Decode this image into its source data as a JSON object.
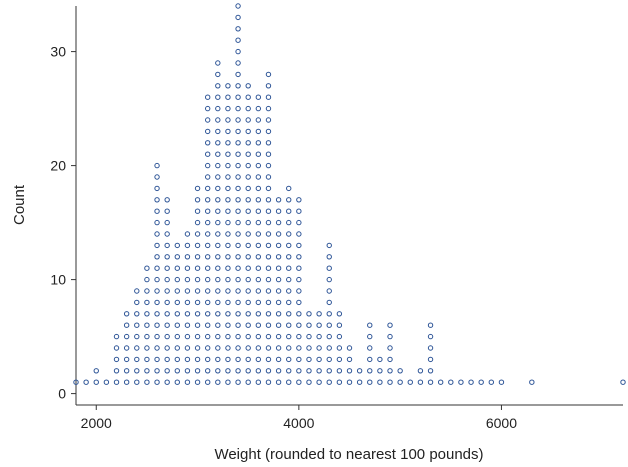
{
  "chart_data": {
    "type": "scatter",
    "subtype": "dot-plot",
    "title": "",
    "xlabel": "Weight (rounded to nearest 100 pounds)",
    "ylabel": "Count",
    "xlim": [
      1800,
      7200
    ],
    "ylim": [
      -1,
      34
    ],
    "xticks": [
      2000,
      4000,
      6000
    ],
    "yticks": [
      0,
      10,
      20,
      30
    ],
    "grid": false,
    "legend": "none",
    "marker_color": "#2e5597",
    "x": [
      1800,
      1900,
      2000,
      2100,
      2200,
      2300,
      2400,
      2500,
      2600,
      2700,
      2800,
      2900,
      3000,
      3100,
      3200,
      3300,
      3400,
      3500,
      3600,
      3700,
      3800,
      3900,
      4000,
      4100,
      4200,
      4300,
      4400,
      4500,
      4600,
      4700,
      4800,
      4900,
      5000,
      5100,
      5200,
      5300,
      5400,
      5500,
      5600,
      5700,
      5800,
      5900,
      6000,
      6300,
      7200
    ],
    "counts": [
      1,
      1,
      2,
      1,
      5,
      7,
      9,
      11,
      20,
      17,
      13,
      14,
      18,
      26,
      29,
      27,
      34,
      27,
      26,
      28,
      17,
      18,
      17,
      7,
      7,
      13,
      7,
      4,
      2,
      6,
      3,
      6,
      2,
      1,
      2,
      6,
      1,
      1,
      1,
      1,
      1,
      1,
      1,
      1,
      1
    ]
  },
  "axis_text": {
    "x_ticks": [
      "2000",
      "4000",
      "6000"
    ],
    "y_ticks": [
      "0",
      "10",
      "20",
      "30"
    ],
    "xlabel": "Weight (rounded to nearest 100 pounds)",
    "ylabel": "Count"
  }
}
